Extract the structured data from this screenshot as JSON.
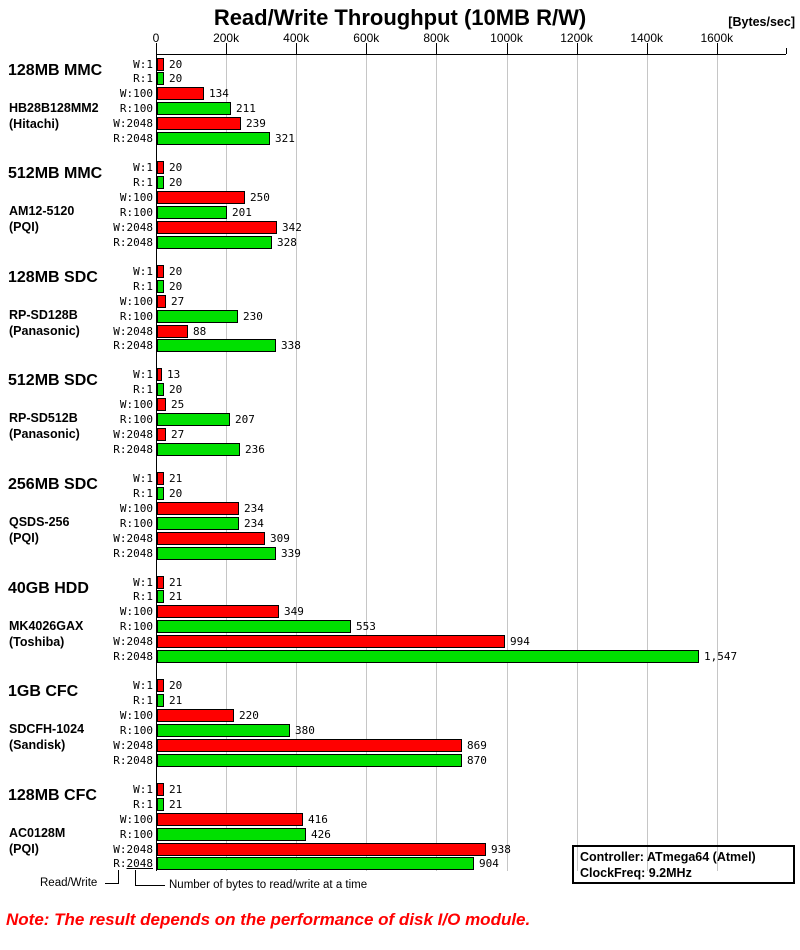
{
  "title": "Read/Write Throughput (10MB R/W)",
  "unit_label": "[Bytes/sec]",
  "chart_data": {
    "type": "bar",
    "orientation": "horizontal",
    "title": "Read/Write Throughput (10MB R/W)",
    "x_unit": "Bytes/sec",
    "x_ticks": [
      "0",
      "200k",
      "400k",
      "600k",
      "800k",
      "1000k",
      "1200k",
      "1400k",
      "1600k"
    ],
    "x_tick_interval_bytes_per_sec": 200000,
    "x_range_bytes_per_sec": [
      0,
      1600000
    ],
    "gridlines": true,
    "legend_position": "none",
    "bar_labels": [
      "W:1",
      "R:1",
      "W:100",
      "R:100",
      "W:2048",
      "R:2048"
    ],
    "colors": {
      "write": "#ff0000",
      "read": "#00e000"
    },
    "groups": [
      {
        "size": "128MB MMC",
        "model": "HB28B128MM2",
        "maker": "(Hitachi)",
        "values_kbytes_per_sec": [
          20,
          20,
          134,
          211,
          239,
          321
        ],
        "value_labels": [
          "20",
          "20",
          "134",
          "211",
          "239",
          "321"
        ]
      },
      {
        "size": "512MB MMC",
        "model": "AM12-5120",
        "maker": "(PQI)",
        "values_kbytes_per_sec": [
          20,
          20,
          250,
          201,
          342,
          328
        ],
        "value_labels": [
          "20",
          "20",
          "250",
          "201",
          "342",
          "328"
        ]
      },
      {
        "size": "128MB SDC",
        "model": "RP-SD128B",
        "maker": "(Panasonic)",
        "values_kbytes_per_sec": [
          20,
          20,
          27,
          230,
          88,
          338
        ],
        "value_labels": [
          "20",
          "20",
          "27",
          "230",
          "88",
          "338"
        ]
      },
      {
        "size": "512MB SDC",
        "model": "RP-SD512B",
        "maker": "(Panasonic)",
        "values_kbytes_per_sec": [
          13,
          20,
          25,
          207,
          27,
          236
        ],
        "value_labels": [
          "13",
          "20",
          "25",
          "207",
          "27",
          "236"
        ]
      },
      {
        "size": "256MB SDC",
        "model": "QSDS-256",
        "maker": "(PQI)",
        "values_kbytes_per_sec": [
          21,
          20,
          234,
          234,
          309,
          339
        ],
        "value_labels": [
          "21",
          "20",
          "234",
          "234",
          "309",
          "339"
        ]
      },
      {
        "size": "40GB HDD",
        "model": "MK4026GAX",
        "maker": "(Toshiba)",
        "values_kbytes_per_sec": [
          21,
          21,
          349,
          553,
          994,
          1547
        ],
        "value_labels": [
          "21",
          "21",
          "349",
          "553",
          "994",
          "1,547"
        ]
      },
      {
        "size": "1GB CFC",
        "model": "SDCFH-1024",
        "maker": "(Sandisk)",
        "values_kbytes_per_sec": [
          20,
          21,
          220,
          380,
          869,
          870
        ],
        "value_labels": [
          "20",
          "21",
          "220",
          "380",
          "869",
          "870"
        ]
      },
      {
        "size": "128MB CFC",
        "model": "AC0128M",
        "maker": "(PQI)",
        "values_kbytes_per_sec": [
          21,
          21,
          416,
          426,
          938,
          904
        ],
        "value_labels": [
          "21",
          "21",
          "416",
          "426",
          "938",
          "904"
        ]
      }
    ]
  },
  "info_box": {
    "line1": "Controller: ATmega64 (Atmel)",
    "line2": "ClockFreq: 9.2MHz"
  },
  "annotations": {
    "read_write": "Read/Write",
    "bytes_at_a_time": "Number of bytes to read/write at a time"
  },
  "note": "Note: The result depends on the performance of disk I/O module."
}
